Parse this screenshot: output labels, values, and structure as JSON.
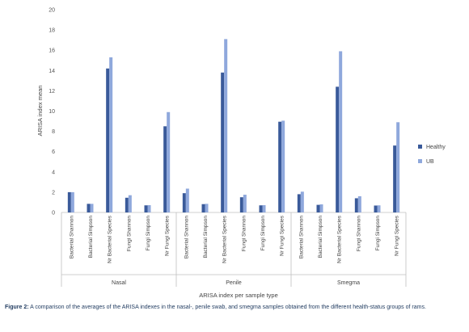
{
  "chart_data": {
    "type": "bar",
    "ylabel": "ARISA index mean",
    "xlabel": "ARISA index per sample type",
    "ylim": [
      0,
      20
    ],
    "yticks": [
      0,
      2,
      4,
      6,
      8,
      10,
      12,
      14,
      16,
      18,
      20
    ],
    "groups": [
      "Nasal",
      "Penile",
      "Smegma"
    ],
    "categories": [
      "Bacterial Shannon",
      "Bacterial Simpson",
      "Nr Bacterial Species",
      "Fungi Shannon",
      "Fungi Simpson",
      "Nr Fungi Species"
    ],
    "series": [
      {
        "name": "Healthy",
        "color": "#3a5a9a",
        "values": [
          [
            2.0,
            0.85,
            14.2,
            1.45,
            0.7,
            8.5
          ],
          [
            1.9,
            0.82,
            13.8,
            1.5,
            0.7,
            8.95
          ],
          [
            1.8,
            0.75,
            12.4,
            1.4,
            0.68,
            6.6
          ]
        ]
      },
      {
        "name": "UB",
        "color": "#8fa8dc",
        "values": [
          [
            2.0,
            0.85,
            15.3,
            1.7,
            0.72,
            9.9
          ],
          [
            2.35,
            0.85,
            17.1,
            1.75,
            0.72,
            9.05
          ],
          [
            2.05,
            0.8,
            15.9,
            1.6,
            0.7,
            8.9
          ]
        ]
      }
    ],
    "legend_position": "right",
    "grid": false
  },
  "caption": {
    "label": "Figure 2:",
    "text": "A comparison of the averages of the ARISA indexes in the nasal-, penile swab, and smegma samples obtained from the different health-status groups of rams."
  }
}
